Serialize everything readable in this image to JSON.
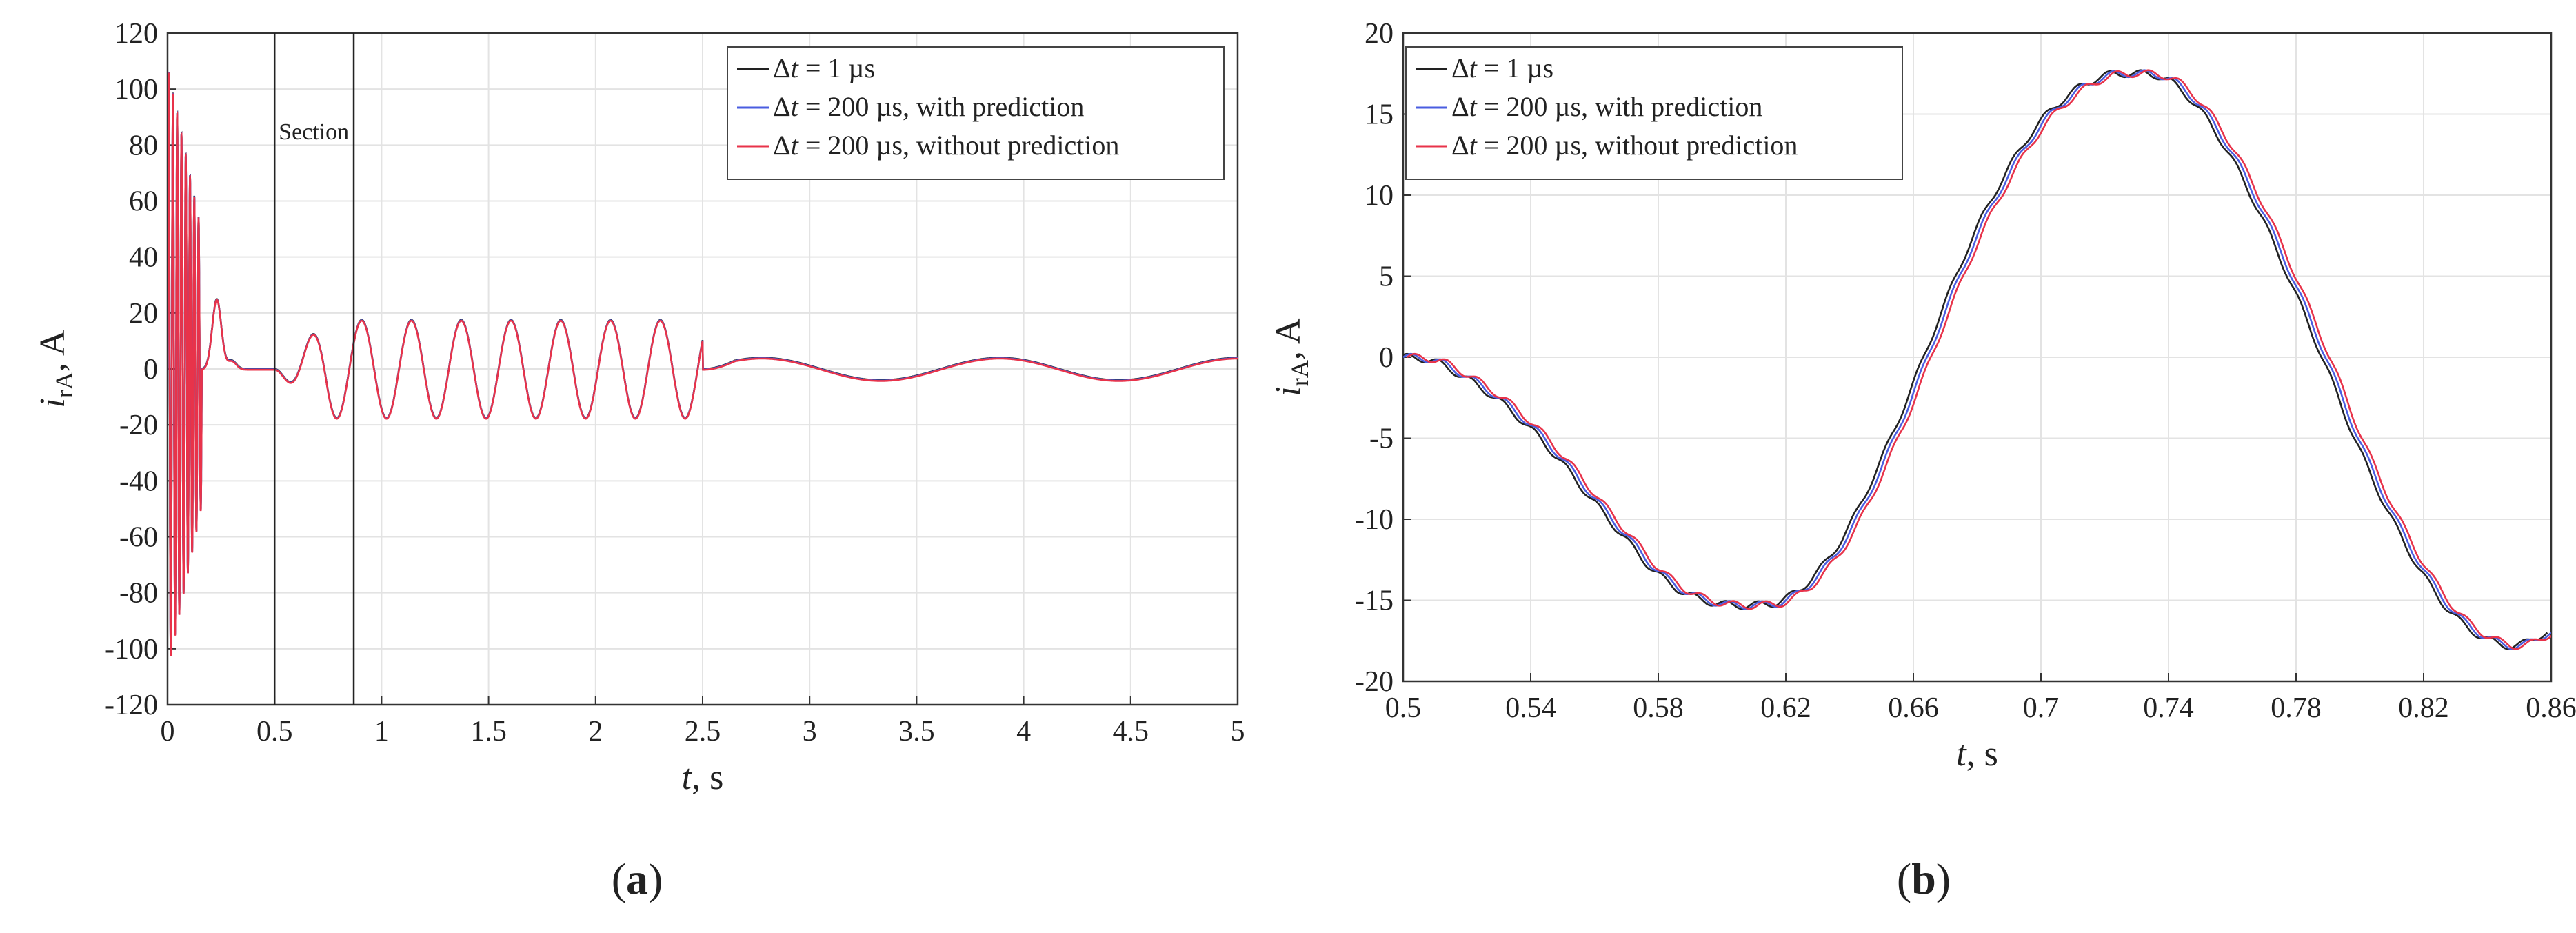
{
  "chart_data": [
    {
      "type": "line",
      "panel_label": "a",
      "xlabel_var": "t",
      "xlabel_unit": ", s",
      "ylabel_var": "i",
      "ylabel_sub": "rA",
      "ylabel_unit": ", A",
      "xlim": [
        0,
        5
      ],
      "ylim": [
        -120,
        120
      ],
      "x_ticks": [
        "0",
        "0.5",
        "1",
        "1.5",
        "2",
        "2.5",
        "3",
        "3.5",
        "4",
        "4.5",
        "5"
      ],
      "y_ticks": [
        "120",
        "100",
        "80",
        "60",
        "40",
        "20",
        "0",
        "-20",
        "-40",
        "-60",
        "-80",
        "-100",
        "-120"
      ],
      "grid": true,
      "legend_position": "top-right",
      "annotation": "Section",
      "section_bounds": [
        0.5,
        0.87
      ],
      "series": [
        {
          "name_prefix": "Δ",
          "name_var": "t",
          "name_rest": " = 1 µs",
          "color": "#222222"
        },
        {
          "name_prefix": "Δ",
          "name_var": "t",
          "name_rest": " = 200 µs, with prediction",
          "color": "#4a5de0"
        },
        {
          "name_prefix": "Δ",
          "name_var": "t",
          "name_rest": " = 200 µs, without prediction",
          "color": "#e8334a"
        }
      ],
      "waveform": {
        "startup_osc": {
          "t_end": 0.16,
          "amp_peak": 108,
          "freq_hz": 50
        },
        "bumps": [
          [
            0.23,
            25
          ],
          [
            0.3,
            3
          ]
        ],
        "middle": {
          "t_start": 0.5,
          "t_end": 2.5,
          "amp": 17.5,
          "freq_hz": 4.3
        },
        "tail": {
          "t_start": 2.5,
          "t_end": 5,
          "amp": 4,
          "freq_hz": 0.9
        }
      }
    },
    {
      "type": "line",
      "panel_label": "b",
      "xlabel_var": "t",
      "xlabel_unit": ", s",
      "ylabel_var": "i",
      "ylabel_sub": "rA",
      "ylabel_unit": ", A",
      "xlim": [
        0.5,
        0.86
      ],
      "ylim": [
        -20,
        20
      ],
      "x_ticks": [
        "0.5",
        "0.54",
        "0.58",
        "0.62",
        "0.66",
        "0.7",
        "0.74",
        "0.78",
        "0.82",
        "0.86"
      ],
      "y_ticks": [
        "20",
        "15",
        "10",
        "5",
        "0",
        "-5",
        "-10",
        "-15",
        "-20"
      ],
      "grid": true,
      "legend_position": "top-left",
      "series": [
        {
          "name_prefix": "Δ",
          "name_var": "t",
          "name_rest": " = 1 µs",
          "color": "#222222"
        },
        {
          "name_prefix": "Δ",
          "name_var": "t",
          "name_rest": " = 200 µs, with prediction",
          "color": "#4a5de0"
        },
        {
          "name_prefix": "Δ",
          "name_var": "t",
          "name_rest": " = 200 µs, without prediction",
          "color": "#e8334a"
        }
      ],
      "points_x": [
        0.5,
        0.51,
        0.52,
        0.53,
        0.54,
        0.55,
        0.56,
        0.57,
        0.58,
        0.59,
        0.6,
        0.61,
        0.62,
        0.63,
        0.64,
        0.65,
        0.66,
        0.67,
        0.68,
        0.69,
        0.7,
        0.71,
        0.72,
        0.73,
        0.74,
        0.75,
        0.76,
        0.77,
        0.78,
        0.79,
        0.8,
        0.81,
        0.82,
        0.83,
        0.84,
        0.85,
        0.86
      ],
      "points_y": [
        0,
        -0.2,
        -1.2,
        -2.5,
        -4.2,
        -6.3,
        -8.7,
        -11,
        -13.2,
        -14.6,
        -15.2,
        -15.3,
        -15,
        -13.5,
        -10.8,
        -6.8,
        -2.2,
        2.8,
        7.5,
        11.3,
        14.3,
        16.2,
        17.3,
        17.5,
        17.2,
        15.5,
        12.6,
        8.8,
        4.4,
        -0.3,
        -5.2,
        -9.5,
        -13.1,
        -15.8,
        -17.3,
        -17.8,
        -17
      ]
    }
  ]
}
